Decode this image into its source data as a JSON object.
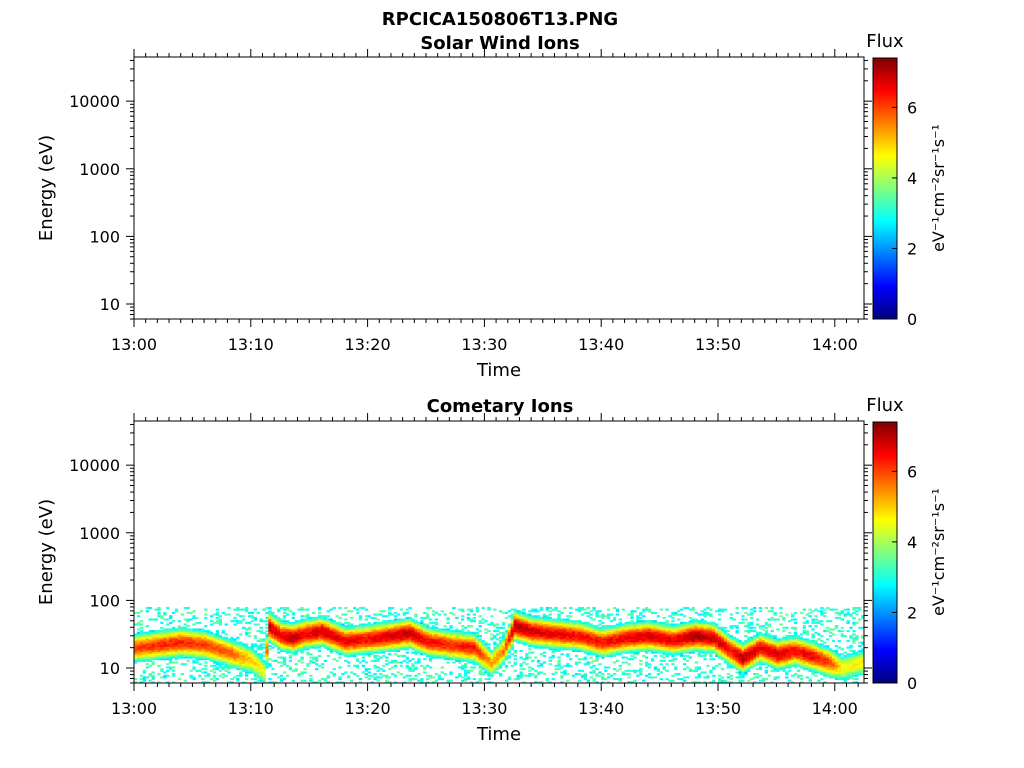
{
  "figure_title": "RPCICA150806T13.PNG",
  "colorbar_gradient": [
    "#00007f",
    "#0000ff",
    "#007fff",
    "#00ffff",
    "#7fff7f",
    "#ffff00",
    "#ff7f00",
    "#ff0000",
    "#7f0000"
  ],
  "chart_data": [
    {
      "type": "heatmap",
      "title": "Solar Wind Ions",
      "xlabel": "Time",
      "ylabel": "Energy (eV)",
      "x_ticks": [
        "13:00",
        "13:10",
        "13:20",
        "13:30",
        "13:40",
        "13:50",
        "14:00"
      ],
      "x_range_minutes": [
        0,
        62.5
      ],
      "y_scale": "log",
      "y_range": [
        6,
        45000
      ],
      "y_ticks": [
        10,
        100,
        1000,
        10000
      ],
      "y_tick_labels": [
        "10",
        "100",
        "1000",
        "10000"
      ],
      "colorbar": {
        "label": "Flux",
        "unit": "eV⁻¹cm⁻²sr⁻¹s⁻¹",
        "range": [
          0,
          7.4
        ],
        "ticks": [
          0,
          2,
          4,
          6
        ],
        "tick_labels": [
          "0",
          "2",
          "4",
          "6"
        ]
      },
      "band": []
    },
    {
      "type": "heatmap",
      "title": "Cometary Ions",
      "xlabel": "Time",
      "ylabel": "Energy (eV)",
      "x_ticks": [
        "13:00",
        "13:10",
        "13:20",
        "13:30",
        "13:40",
        "13:50",
        "14:00"
      ],
      "x_range_minutes": [
        0,
        62.5
      ],
      "y_scale": "log",
      "y_range": [
        6,
        45000
      ],
      "y_ticks": [
        10,
        100,
        1000,
        10000
      ],
      "y_tick_labels": [
        "10",
        "100",
        "1000",
        "10000"
      ],
      "colorbar": {
        "label": "Flux",
        "unit": "eV⁻¹cm⁻²sr⁻¹s⁻¹",
        "range": [
          0,
          7.4
        ],
        "ticks": [
          0,
          2,
          4,
          6
        ],
        "tick_labels": [
          "0",
          "2",
          "4",
          "6"
        ]
      },
      "noise_floor_eV": 6,
      "noise_ceiling_eV": 80,
      "band_columns": [
        {
          "t": 0,
          "e": 20,
          "f": 6.0
        },
        {
          "t": 2,
          "e": 22,
          "f": 6.2
        },
        {
          "t": 4,
          "e": 24,
          "f": 6.3
        },
        {
          "t": 6,
          "e": 22,
          "f": 6.0
        },
        {
          "t": 8,
          "e": 17,
          "f": 5.8
        },
        {
          "t": 10,
          "e": 13,
          "f": 5.0
        },
        {
          "t": 11,
          "e": 9,
          "f": 4.5
        },
        {
          "t": 11.5,
          "e": 40,
          "f": 6.8
        },
        {
          "t": 12.5,
          "e": 30,
          "f": 6.5
        },
        {
          "t": 13.5,
          "e": 28,
          "f": 7.0
        },
        {
          "t": 14.5,
          "e": 32,
          "f": 6.6
        },
        {
          "t": 16,
          "e": 35,
          "f": 6.8
        },
        {
          "t": 18,
          "e": 25,
          "f": 6.6
        },
        {
          "t": 20,
          "e": 27,
          "f": 6.5
        },
        {
          "t": 22,
          "e": 30,
          "f": 6.8
        },
        {
          "t": 23.5,
          "e": 33,
          "f": 6.9
        },
        {
          "t": 25,
          "e": 25,
          "f": 6.5
        },
        {
          "t": 27,
          "e": 22,
          "f": 6.2
        },
        {
          "t": 29,
          "e": 20,
          "f": 6.4
        },
        {
          "t": 30.5,
          "e": 12,
          "f": 5.2
        },
        {
          "t": 31.5,
          "e": 18,
          "f": 5.5
        },
        {
          "t": 32.5,
          "e": 42,
          "f": 7.0
        },
        {
          "t": 34,
          "e": 35,
          "f": 6.8
        },
        {
          "t": 36,
          "e": 32,
          "f": 6.6
        },
        {
          "t": 38,
          "e": 30,
          "f": 6.5
        },
        {
          "t": 40,
          "e": 24,
          "f": 6.4
        },
        {
          "t": 42,
          "e": 28,
          "f": 6.6
        },
        {
          "t": 44,
          "e": 30,
          "f": 6.8
        },
        {
          "t": 46,
          "e": 26,
          "f": 6.6
        },
        {
          "t": 48,
          "e": 30,
          "f": 7.1
        },
        {
          "t": 49.5,
          "e": 28,
          "f": 6.8
        },
        {
          "t": 51,
          "e": 18,
          "f": 6.5
        },
        {
          "t": 52,
          "e": 14,
          "f": 7.0
        },
        {
          "t": 53.5,
          "e": 20,
          "f": 6.6
        },
        {
          "t": 55,
          "e": 16,
          "f": 6.8
        },
        {
          "t": 56.5,
          "e": 18,
          "f": 6.5
        },
        {
          "t": 58,
          "e": 15,
          "f": 6.6
        },
        {
          "t": 59.5,
          "e": 12,
          "f": 6.0
        },
        {
          "t": 60.5,
          "e": 10,
          "f": 4.6
        },
        {
          "t": 62,
          "e": 12,
          "f": 4.8
        }
      ]
    }
  ]
}
